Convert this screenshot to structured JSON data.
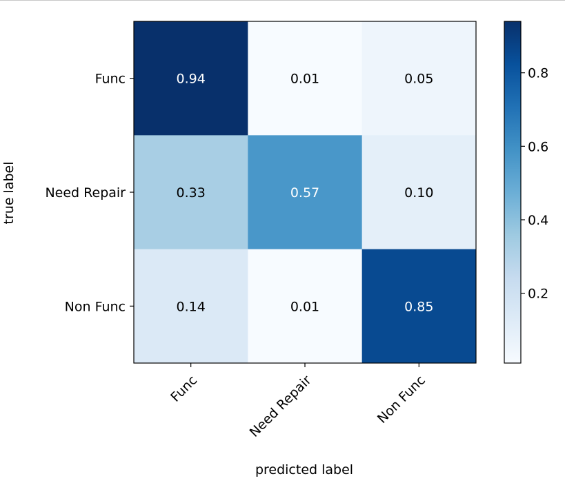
{
  "chart_data": {
    "type": "heatmap",
    "title": "",
    "xlabel": "predicted label",
    "ylabel": "true label",
    "x_categories": [
      "Func",
      "Need Repair",
      "Non Func"
    ],
    "y_categories": [
      "Func",
      "Need Repair",
      "Non Func"
    ],
    "values": [
      [
        0.94,
        0.01,
        0.05
      ],
      [
        0.33,
        0.57,
        0.1
      ],
      [
        0.14,
        0.01,
        0.85
      ]
    ],
    "value_labels": [
      [
        "0.94",
        "0.01",
        "0.05"
      ],
      [
        "0.33",
        "0.57",
        "0.10"
      ],
      [
        "0.14",
        "0.01",
        "0.85"
      ]
    ],
    "colormap": "Blues",
    "colorbar": {
      "range": [
        0.01,
        0.94
      ],
      "ticks": [
        0.2,
        0.4,
        0.6,
        0.8
      ],
      "tick_labels": [
        "0.2",
        "0.4",
        "0.6",
        "0.8"
      ]
    },
    "x_tick_rotation_deg": 45,
    "grid": false,
    "legend": "colorbar-right"
  }
}
